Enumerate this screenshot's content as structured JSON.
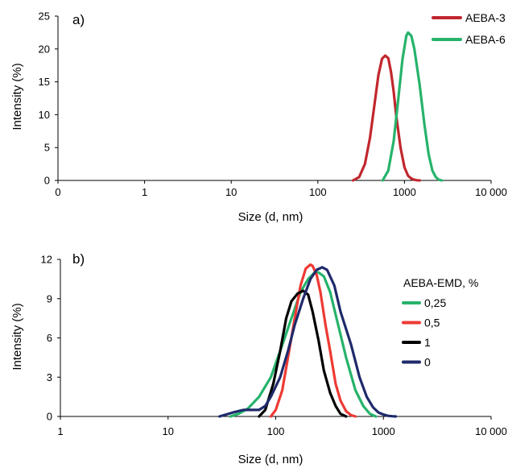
{
  "chart_data": [
    {
      "type": "line",
      "panel_label": "a)",
      "xlabel": "Size (d, nm)",
      "ylabel": "Intensity  (%)",
      "xscale": "log",
      "xlim": [
        0.1,
        10000
      ],
      "ylim": [
        0,
        25
      ],
      "xticks": [
        "0",
        "1",
        "10",
        "100",
        "1000",
        "10 000"
      ],
      "yticks": [
        "0",
        "5",
        "10",
        "15",
        "20",
        "25"
      ],
      "legend_position": "top-right",
      "series": [
        {
          "name": "AEBA-3",
          "color": "#c1272d",
          "x": [
            255,
            300,
            350,
            400,
            450,
            500,
            550,
            600,
            650,
            700,
            750,
            800,
            900,
            1000,
            1100,
            1200,
            1300,
            1400,
            1500
          ],
          "y": [
            0,
            0.5,
            2.5,
            6.5,
            11.5,
            16.0,
            18.5,
            19.0,
            18.6,
            16.5,
            13.5,
            10.0,
            5.0,
            2.0,
            0.7,
            0.3,
            0.1,
            0.02,
            0
          ]
        },
        {
          "name": "AEBA-6",
          "color": "#26b36b",
          "x": [
            560,
            650,
            750,
            850,
            950,
            1050,
            1100,
            1200,
            1300,
            1500,
            1700,
            1900,
            2100,
            2300,
            2500,
            2700
          ],
          "y": [
            0,
            1.5,
            6.0,
            12.5,
            18.5,
            22.0,
            22.5,
            22.0,
            20.0,
            14.5,
            8.5,
            4.0,
            1.5,
            0.5,
            0.1,
            0
          ]
        }
      ]
    },
    {
      "type": "line",
      "panel_label": "b)",
      "xlabel": "Size (d, nm)",
      "ylabel": "Intensity  (%)",
      "xscale": "log",
      "xlim": [
        1,
        10000
      ],
      "ylim": [
        0,
        12
      ],
      "xticks": [
        "1",
        "10",
        "100",
        "1000",
        "10 000"
      ],
      "yticks": [
        "0",
        "3",
        "6",
        "9",
        "12"
      ],
      "legend_title": "AEBA-EMD, %",
      "legend_position": "right",
      "series": [
        {
          "name": "0,25",
          "color": "#26b36b",
          "x": [
            38,
            45,
            55,
            70,
            90,
            110,
            140,
            170,
            200,
            230,
            250,
            280,
            320,
            380,
            450,
            550,
            650,
            750,
            850
          ],
          "y": [
            0,
            0.2,
            0.6,
            1.5,
            3.0,
            5.0,
            7.5,
            9.5,
            10.5,
            11.0,
            11.0,
            10.7,
            9.5,
            7.0,
            4.5,
            2.0,
            0.8,
            0.2,
            0
          ]
        },
        {
          "name": "0,5",
          "color": "#ee3a34",
          "x": [
            90,
            100,
            115,
            130,
            150,
            170,
            190,
            210,
            220,
            240,
            260,
            290,
            320,
            360,
            400,
            450,
            500,
            550
          ],
          "y": [
            0,
            0.5,
            2.0,
            4.5,
            7.5,
            10.0,
            11.3,
            11.6,
            11.5,
            10.8,
            9.5,
            7.0,
            5.0,
            2.5,
            1.2,
            0.4,
            0.1,
            0
          ]
        },
        {
          "name": "1",
          "color": "#000000",
          "x": [
            70,
            80,
            95,
            110,
            125,
            140,
            160,
            180,
            200,
            220,
            250,
            280,
            320,
            360,
            400,
            450
          ],
          "y": [
            0,
            0.5,
            2.5,
            5.0,
            7.5,
            8.8,
            9.4,
            9.6,
            9.3,
            8.0,
            5.8,
            3.5,
            1.8,
            0.8,
            0.2,
            0
          ]
        },
        {
          "name": "0",
          "color": "#1f2a6b",
          "x": [
            30,
            40,
            50,
            60,
            70,
            80,
            90,
            110,
            130,
            150,
            180,
            210,
            240,
            270,
            300,
            350,
            400,
            500,
            600,
            700,
            800,
            900,
            1000,
            1100,
            1200,
            1300
          ],
          "y": [
            0,
            0.3,
            0.5,
            0.5,
            0.5,
            0.8,
            1.5,
            3.0,
            5.0,
            7.0,
            9.0,
            10.5,
            11.2,
            11.4,
            11.2,
            10.0,
            8.0,
            5.5,
            3.0,
            1.5,
            0.7,
            0.3,
            0.15,
            0.05,
            0.02,
            0
          ]
        }
      ]
    }
  ]
}
